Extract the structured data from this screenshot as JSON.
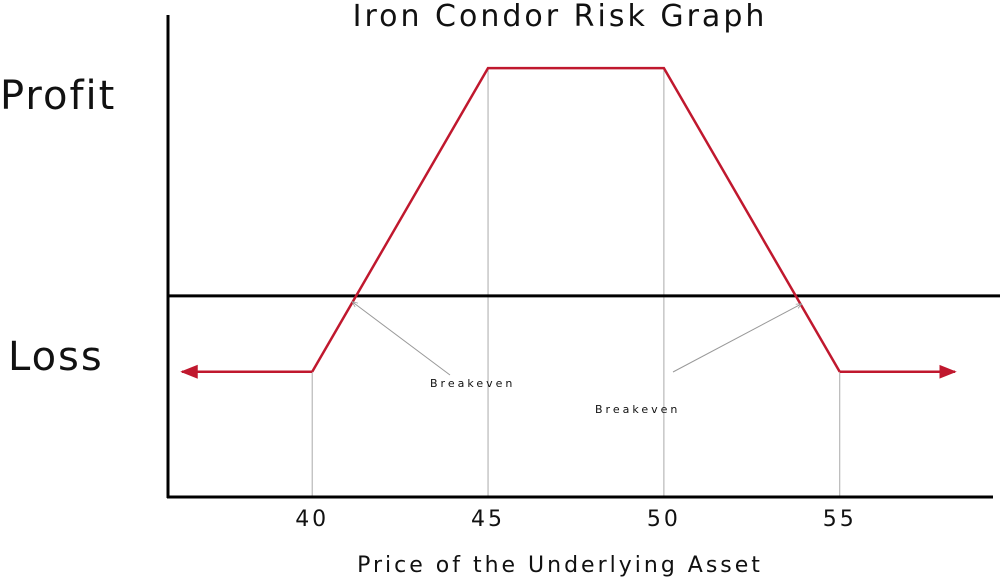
{
  "chart_data": {
    "type": "line",
    "title": "Iron Condor Risk Graph",
    "xlabel": "Price of the Underlying Asset",
    "profit_label": "Profit",
    "loss_label": "Loss",
    "x_ticks": [
      "40",
      "45",
      "50",
      "55"
    ],
    "series": [
      {
        "color": "#c0182e",
        "points": [
          {
            "x": 40,
            "y": -1
          },
          {
            "x": 45,
            "y": 3
          },
          {
            "x": 50,
            "y": 3
          },
          {
            "x": 55,
            "y": -1
          }
        ]
      }
    ],
    "xlim": [
      35.9,
      59.5
    ],
    "ylim": [
      -2.65,
      3.7
    ],
    "annotations": [
      {
        "text": "Breakeven",
        "x": 40.8
      },
      {
        "text": "Breakeven",
        "x": 54.2
      }
    ],
    "colors": {
      "payoff": "#c0182e",
      "axis": "#000000",
      "guide": "#aaaaaa",
      "arrow": "#999999"
    }
  }
}
